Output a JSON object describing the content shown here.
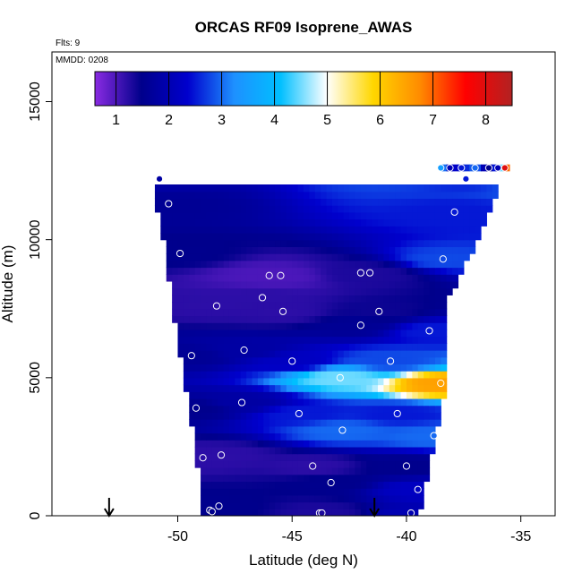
{
  "chart_data": {
    "type": "heatmap",
    "title": "ORCAS RF09 Isoprene_AWAS",
    "flights_label": "Flts: 9",
    "date_label": "MMDD: 0208",
    "xlabel": "Latitude (deg N)",
    "ylabel": "Altitude (m)",
    "xlim": [
      -55.5,
      -33.5
    ],
    "ylim": [
      0,
      16800
    ],
    "x_ticks": [
      -50,
      -45,
      -40,
      -35
    ],
    "x_tick_labels": [
      "-50",
      "-45",
      "-40",
      "-35"
    ],
    "y_ticks": [
      0,
      5000,
      10000,
      15000
    ],
    "y_tick_labels": [
      "0",
      "5000",
      "10000",
      "15000"
    ],
    "colorbar": {
      "min": 0.6,
      "max": 8.5,
      "ticks": [
        1,
        2,
        3,
        4,
        5,
        6,
        7,
        8
      ],
      "tick_labels": [
        "1",
        "2",
        "3",
        "4",
        "5",
        "6",
        "7",
        "8"
      ],
      "colors": [
        "#8a2be2",
        "#00008b",
        "#0000cd",
        "#1e90ff",
        "#00bfff",
        "#ffffff",
        "#ffd700",
        "#ff8c00",
        "#ff0000",
        "#b22222"
      ]
    },
    "field_envelope": [
      {
        "alt": 0,
        "lat_min": -48.8,
        "lat_max": -39.6
      },
      {
        "alt": 2500,
        "lat_min": -49.1,
        "lat_max": -38.9
      },
      {
        "alt": 5000,
        "lat_min": -49.6,
        "lat_max": -38.3
      },
      {
        "alt": 7500,
        "lat_min": -50.1,
        "lat_max": -38.5
      },
      {
        "alt": 10000,
        "lat_min": -50.5,
        "lat_max": -37.0
      },
      {
        "alt": 12000,
        "lat_min": -51.0,
        "lat_max": -36.0
      },
      {
        "alt": 12600,
        "lat_min": -38.5,
        "lat_max": -35.6
      }
    ],
    "points": [
      {
        "lat": -48.6,
        "alt": 200,
        "value": 1.5
      },
      {
        "lat": -48.5,
        "alt": 150,
        "value": 1.5
      },
      {
        "lat": -48.2,
        "alt": 350,
        "value": 1.5
      },
      {
        "lat": -43.8,
        "alt": 100,
        "value": 1.3
      },
      {
        "lat": -43.7,
        "alt": 100,
        "value": 1.3
      },
      {
        "lat": -39.8,
        "alt": 100,
        "value": 2.0
      },
      {
        "lat": -39.5,
        "alt": 950,
        "value": 2.2
      },
      {
        "lat": -43.3,
        "alt": 1200,
        "value": 1.5
      },
      {
        "lat": -44.1,
        "alt": 1800,
        "value": 1.2
      },
      {
        "lat": -40.0,
        "alt": 1800,
        "value": 1.5
      },
      {
        "lat": -48.9,
        "alt": 2100,
        "value": 1.2
      },
      {
        "lat": -48.1,
        "alt": 2200,
        "value": 1.2
      },
      {
        "lat": -38.8,
        "alt": 2900,
        "value": 3.0
      },
      {
        "lat": -42.8,
        "alt": 3100,
        "value": 3.0
      },
      {
        "lat": -44.7,
        "alt": 3700,
        "value": 2.5
      },
      {
        "lat": -40.4,
        "alt": 3700,
        "value": 2.5
      },
      {
        "lat": -49.2,
        "alt": 3900,
        "value": 1.5
      },
      {
        "lat": -47.2,
        "alt": 4100,
        "value": 1.8
      },
      {
        "lat": -38.5,
        "alt": 4800,
        "value": 6.5
      },
      {
        "lat": -42.9,
        "alt": 5000,
        "value": 4.5
      },
      {
        "lat": -45.0,
        "alt": 5600,
        "value": 2.2
      },
      {
        "lat": -40.7,
        "alt": 5600,
        "value": 2.8
      },
      {
        "lat": -49.4,
        "alt": 5800,
        "value": 1.6
      },
      {
        "lat": -47.1,
        "alt": 6000,
        "value": 1.8
      },
      {
        "lat": -39.0,
        "alt": 6700,
        "value": 2.5
      },
      {
        "lat": -42.0,
        "alt": 6900,
        "value": 1.6
      },
      {
        "lat": -48.3,
        "alt": 7600,
        "value": 1.2
      },
      {
        "lat": -45.4,
        "alt": 7400,
        "value": 1.2
      },
      {
        "lat": -41.2,
        "alt": 7400,
        "value": 1.4
      },
      {
        "lat": -46.3,
        "alt": 7900,
        "value": 1.2
      },
      {
        "lat": -46.0,
        "alt": 8700,
        "value": 1.0
      },
      {
        "lat": -45.5,
        "alt": 8700,
        "value": 1.0
      },
      {
        "lat": -42.0,
        "alt": 8800,
        "value": 1.3
      },
      {
        "lat": -41.6,
        "alt": 8800,
        "value": 1.3
      },
      {
        "lat": -38.4,
        "alt": 9300,
        "value": 2.8
      },
      {
        "lat": -49.9,
        "alt": 9500,
        "value": 1.5
      },
      {
        "lat": -37.9,
        "alt": 11000,
        "value": 2.5
      },
      {
        "lat": -50.4,
        "alt": 11300,
        "value": 1.6
      },
      {
        "lat": -50.8,
        "alt": 12200,
        "value": 1.8
      },
      {
        "lat": -37.4,
        "alt": 12200,
        "value": 2.5
      },
      {
        "lat": -38.5,
        "alt": 12600,
        "value": 3.5
      },
      {
        "lat": -38.1,
        "alt": 12600,
        "value": 2.0
      },
      {
        "lat": -37.6,
        "alt": 12600,
        "value": 2.5
      },
      {
        "lat": -37.0,
        "alt": 12600,
        "value": 3.0
      },
      {
        "lat": -36.4,
        "alt": 12600,
        "value": 1.5
      },
      {
        "lat": -36.0,
        "alt": 12600,
        "value": 2.0
      },
      {
        "lat": -35.7,
        "alt": 12600,
        "value": 8.0
      }
    ],
    "arrows_lat": [
      -53.0,
      -41.4
    ],
    "grid": false,
    "legend": "colorbar top"
  }
}
